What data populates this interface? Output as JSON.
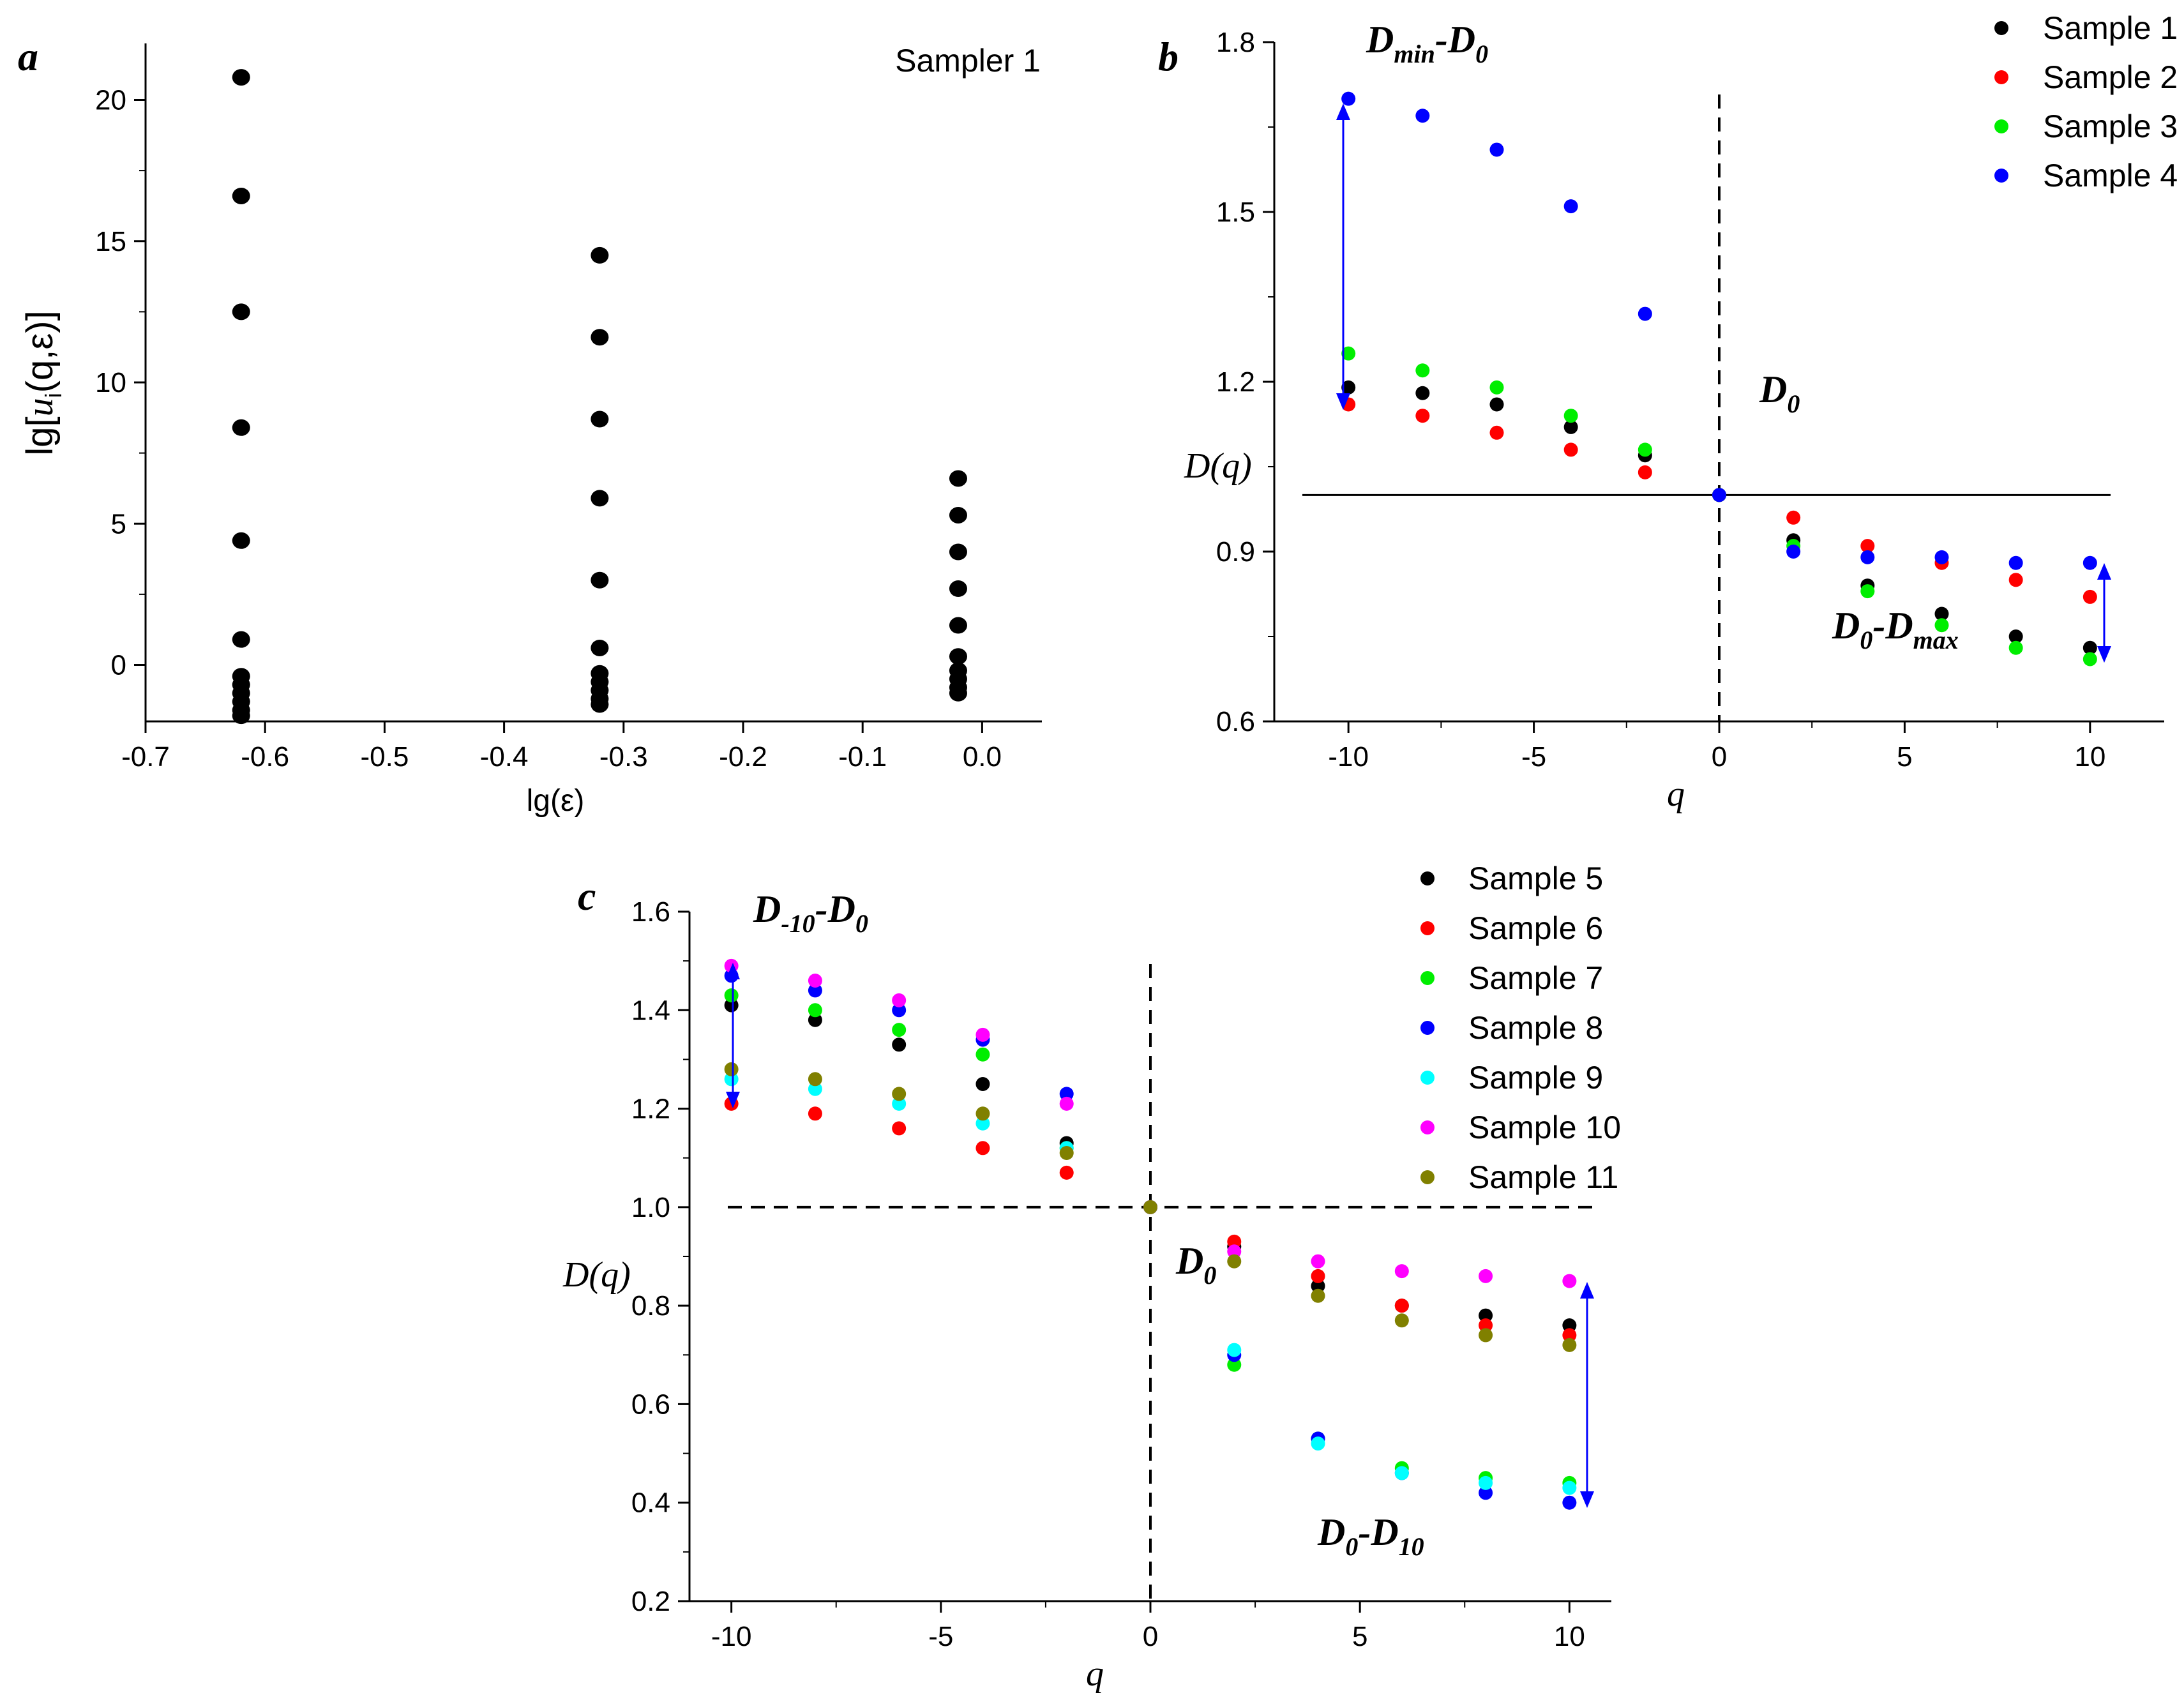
{
  "chart_data": [
    {
      "id": "a",
      "type": "scatter",
      "panel_letter": "a",
      "title": "Sampler 1",
      "xlabel": "lg(ε)",
      "ylabel_parts": [
        "lg[",
        "u",
        "i",
        "(q,ε)]"
      ],
      "xlim": [
        -0.7,
        0.05
      ],
      "ylim": [
        -2,
        22
      ],
      "xticks": [
        -0.7,
        -0.6,
        -0.5,
        -0.4,
        -0.3,
        -0.2,
        -0.1,
        0.0
      ],
      "xtick_labels": [
        "-0.7",
        "-0.6",
        "-0.5",
        "-0.4",
        "-0.3",
        "-0.2",
        "-0.1",
        "0.0"
      ],
      "yticks": [
        0,
        5,
        10,
        15,
        20
      ],
      "ytick_labels": [
        "0",
        "5",
        "10",
        "15",
        "20"
      ],
      "series": [
        {
          "name": "Sampler 1",
          "color": "#000000",
          "points": [
            [
              -0.62,
              20.8
            ],
            [
              -0.62,
              16.6
            ],
            [
              -0.62,
              12.5
            ],
            [
              -0.62,
              8.4
            ],
            [
              -0.62,
              4.4
            ],
            [
              -0.62,
              0.9
            ],
            [
              -0.62,
              -0.4
            ],
            [
              -0.62,
              -0.7
            ],
            [
              -0.62,
              -1.0
            ],
            [
              -0.62,
              -1.3
            ],
            [
              -0.62,
              -1.6
            ],
            [
              -0.62,
              -1.8
            ],
            [
              -0.32,
              14.5
            ],
            [
              -0.32,
              11.6
            ],
            [
              -0.32,
              8.7
            ],
            [
              -0.32,
              5.9
            ],
            [
              -0.32,
              3.0
            ],
            [
              -0.32,
              0.6
            ],
            [
              -0.32,
              -0.3
            ],
            [
              -0.32,
              -0.6
            ],
            [
              -0.32,
              -0.9
            ],
            [
              -0.32,
              -1.2
            ],
            [
              -0.32,
              -1.4
            ],
            [
              -0.02,
              6.6
            ],
            [
              -0.02,
              5.3
            ],
            [
              -0.02,
              4.0
            ],
            [
              -0.02,
              2.7
            ],
            [
              -0.02,
              1.4
            ],
            [
              -0.02,
              0.3
            ],
            [
              -0.02,
              -0.2
            ],
            [
              -0.02,
              -0.5
            ],
            [
              -0.02,
              -0.8
            ],
            [
              -0.02,
              -1.0
            ]
          ]
        }
      ]
    },
    {
      "id": "b",
      "type": "scatter",
      "panel_letter": "b",
      "xlabel": "q",
      "ylabel": "D(q)",
      "xlim": [
        -12,
        12
      ],
      "ylim": [
        0.6,
        1.8
      ],
      "xticks": [
        -10,
        -5,
        0,
        5,
        10
      ],
      "xtick_labels": [
        "-10",
        "-5",
        "0",
        "5",
        "10"
      ],
      "yticks": [
        0.6,
        0.9,
        1.2,
        1.5,
        1.8
      ],
      "ytick_labels": [
        "0.6",
        "0.9",
        "1.2",
        "1.5",
        "1.8"
      ],
      "hline": 1.0,
      "vline": 0,
      "hline_style": "solid",
      "annotations": [
        {
          "main": "D",
          "sub": "min",
          "rest": "-D",
          "sub2": "0"
        },
        {
          "main": "D",
          "sub": "0",
          "rest": "",
          "sub2": ""
        },
        {
          "main": "D",
          "sub": "0",
          "rest": "-D",
          "sub2": "max"
        }
      ],
      "x": [
        -10,
        -8,
        -6,
        -4,
        -2,
        0,
        2,
        4,
        6,
        8,
        10
      ],
      "series": [
        {
          "name": "Sample 1",
          "color": "#000000",
          "values": [
            1.19,
            1.18,
            1.16,
            1.12,
            1.07,
            1.0,
            0.92,
            0.84,
            0.79,
            0.75,
            0.73
          ]
        },
        {
          "name": "Sample 2",
          "color": "#ff0000",
          "values": [
            1.16,
            1.14,
            1.11,
            1.08,
            1.04,
            1.0,
            0.96,
            0.91,
            0.88,
            0.85,
            0.82
          ]
        },
        {
          "name": "Sample 3",
          "color": "#00ee00",
          "values": [
            1.25,
            1.22,
            1.19,
            1.14,
            1.08,
            1.0,
            0.91,
            0.83,
            0.77,
            0.73,
            0.71
          ]
        },
        {
          "name": "Sample 4",
          "color": "#0000ff",
          "values": [
            1.7,
            1.67,
            1.61,
            1.51,
            1.32,
            1.0,
            0.9,
            0.89,
            0.89,
            0.88,
            0.88
          ]
        }
      ]
    },
    {
      "id": "c",
      "type": "scatter",
      "panel_letter": "c",
      "xlabel": "q",
      "ylabel": "D(q)",
      "xlim": [
        -11,
        11
      ],
      "ylim": [
        0.2,
        1.6
      ],
      "xticks": [
        -10,
        -5,
        0,
        5,
        10
      ],
      "xtick_labels": [
        "-10",
        "-5",
        "0",
        "5",
        "10"
      ],
      "yticks": [
        0.2,
        0.4,
        0.6,
        0.8,
        1.0,
        1.2,
        1.4,
        1.6
      ],
      "ytick_labels": [
        "0.2",
        "0.4",
        "0.6",
        "0.8",
        "1.0",
        "1.2",
        "1.4",
        "1.6"
      ],
      "hline": 1.0,
      "vline": 0,
      "hline_style": "dashed",
      "annotations": [
        {
          "main": "D",
          "sub": "-10",
          "rest": "-D",
          "sub2": "0"
        },
        {
          "main": "D",
          "sub": "0",
          "rest": "",
          "sub2": ""
        },
        {
          "main": "D",
          "sub": "0",
          "rest": "-D",
          "sub2": "10"
        }
      ],
      "x": [
        -10,
        -8,
        -6,
        -4,
        -2,
        0,
        2,
        4,
        6,
        8,
        10
      ],
      "series": [
        {
          "name": "Sample 5",
          "color": "#000000",
          "values": [
            1.41,
            1.38,
            1.33,
            1.25,
            1.13,
            1.0,
            0.92,
            0.84,
            0.8,
            0.78,
            0.76
          ]
        },
        {
          "name": "Sample 6",
          "color": "#ff0000",
          "values": [
            1.21,
            1.19,
            1.16,
            1.12,
            1.07,
            1.0,
            0.93,
            0.86,
            0.8,
            0.76,
            0.74
          ]
        },
        {
          "name": "Sample 7",
          "color": "#00ee00",
          "values": [
            1.43,
            1.4,
            1.36,
            1.31,
            1.12,
            1.0,
            0.68,
            0.53,
            0.47,
            0.45,
            0.44
          ]
        },
        {
          "name": "Sample 8",
          "color": "#0000ff",
          "values": [
            1.47,
            1.44,
            1.4,
            1.34,
            1.23,
            1.0,
            0.7,
            0.53,
            0.46,
            0.42,
            0.4
          ]
        },
        {
          "name": "Sample 9",
          "color": "#00ffff",
          "values": [
            1.26,
            1.24,
            1.21,
            1.17,
            1.12,
            1.0,
            0.71,
            0.52,
            0.46,
            0.44,
            0.43
          ]
        },
        {
          "name": "Sample 10",
          "color": "#ff00ff",
          "values": [
            1.49,
            1.46,
            1.42,
            1.35,
            1.21,
            1.0,
            0.91,
            0.89,
            0.87,
            0.86,
            0.85
          ]
        },
        {
          "name": "Sample 11",
          "color": "#808000",
          "values": [
            1.28,
            1.26,
            1.23,
            1.19,
            1.11,
            1.0,
            0.89,
            0.82,
            0.77,
            0.74,
            0.72
          ]
        }
      ]
    }
  ]
}
